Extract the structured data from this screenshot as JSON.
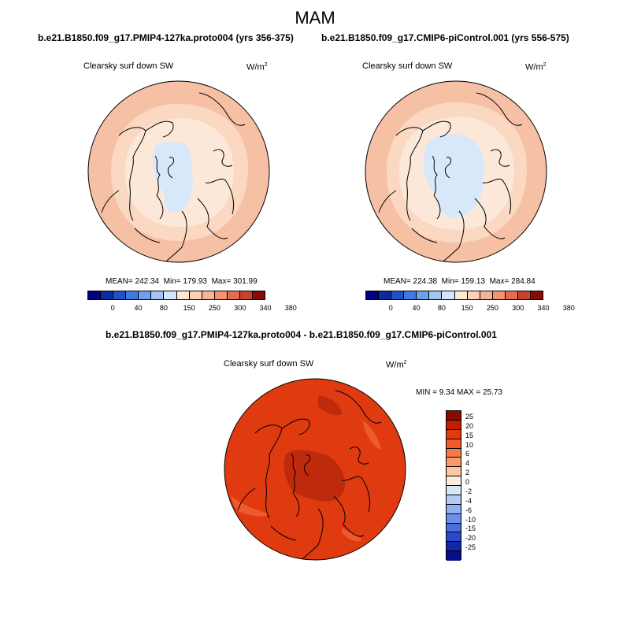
{
  "season": "MAM",
  "panels": [
    {
      "title": "b.e21.B1850.f09_g17.PMIP4-127ka.proto004 (yrs 356-375)",
      "variable": "Clearsky surf down SW",
      "units": "W/m",
      "units_exp": "2",
      "stats": {
        "mean_label": "MEAN=",
        "mean": "242.34",
        "min_label": "Min=",
        "min": "179.93",
        "max_label": "Max=",
        "max": "301.99"
      }
    },
    {
      "title": "b.e21.B1850.f09_g17.CMIP6-piControl.001 (yrs 556-575)",
      "variable": "Clearsky surf down SW",
      "units": "W/m",
      "units_exp": "2",
      "stats": {
        "mean_label": "MEAN=",
        "mean": "224.38",
        "min_label": "Min=",
        "min": "159.13",
        "max_label": "Max=",
        "max": "284.84"
      }
    }
  ],
  "diff": {
    "title": "b.e21.B1850.f09_g17.PMIP4-127ka.proto004 - b.e21.B1850.f09_g17.CMIP6-piControl.001",
    "variable": "Clearsky surf down SW",
    "units": "W/m",
    "units_exp": "2",
    "minmax": {
      "min_label": "MIN =",
      "min": "9.34",
      "max_label": "MAX =",
      "max": "25.73"
    }
  },
  "colorbar_abs": {
    "labels": [
      "0",
      "40",
      "80",
      "150",
      "250",
      "300",
      "340",
      "380"
    ],
    "colors": [
      "#000080",
      "#0b2ca0",
      "#1f50c8",
      "#3f7ae0",
      "#6fa0ee",
      "#a4c6f5",
      "#d4e6fb",
      "#fde8d6",
      "#fbd0b6",
      "#f6b497",
      "#f29374",
      "#e46c52",
      "#c8422e",
      "#8a0a05"
    ]
  },
  "colorbar_diff": {
    "labels": [
      "25",
      "20",
      "15",
      "10",
      "6",
      "4",
      "2",
      "0",
      "-2",
      "-4",
      "-6",
      "-10",
      "-15",
      "-20",
      "-25"
    ],
    "colors": [
      "#8b0a00",
      "#c02000",
      "#e43a0a",
      "#f35c2a",
      "#f77b48",
      "#fa9a6c",
      "#fcc6a4",
      "#fdecdc",
      "#d6e7fb",
      "#b2ccf5",
      "#90b0f0",
      "#6e8ee8",
      "#4e6edd",
      "#2c48c8",
      "#1226a8",
      "#060c8a"
    ]
  },
  "map_colors": {
    "abs_outer": "#f6c0a5",
    "abs_ring2": "#fad8c2",
    "abs_ring3": "#fce8d8",
    "abs_inner": "#fdf0e4",
    "abs_ice": "#d6e8fa",
    "diff_bg": "#df3a10",
    "diff_dark": "#c02a0c",
    "diff_light": "#ef5a2c"
  }
}
